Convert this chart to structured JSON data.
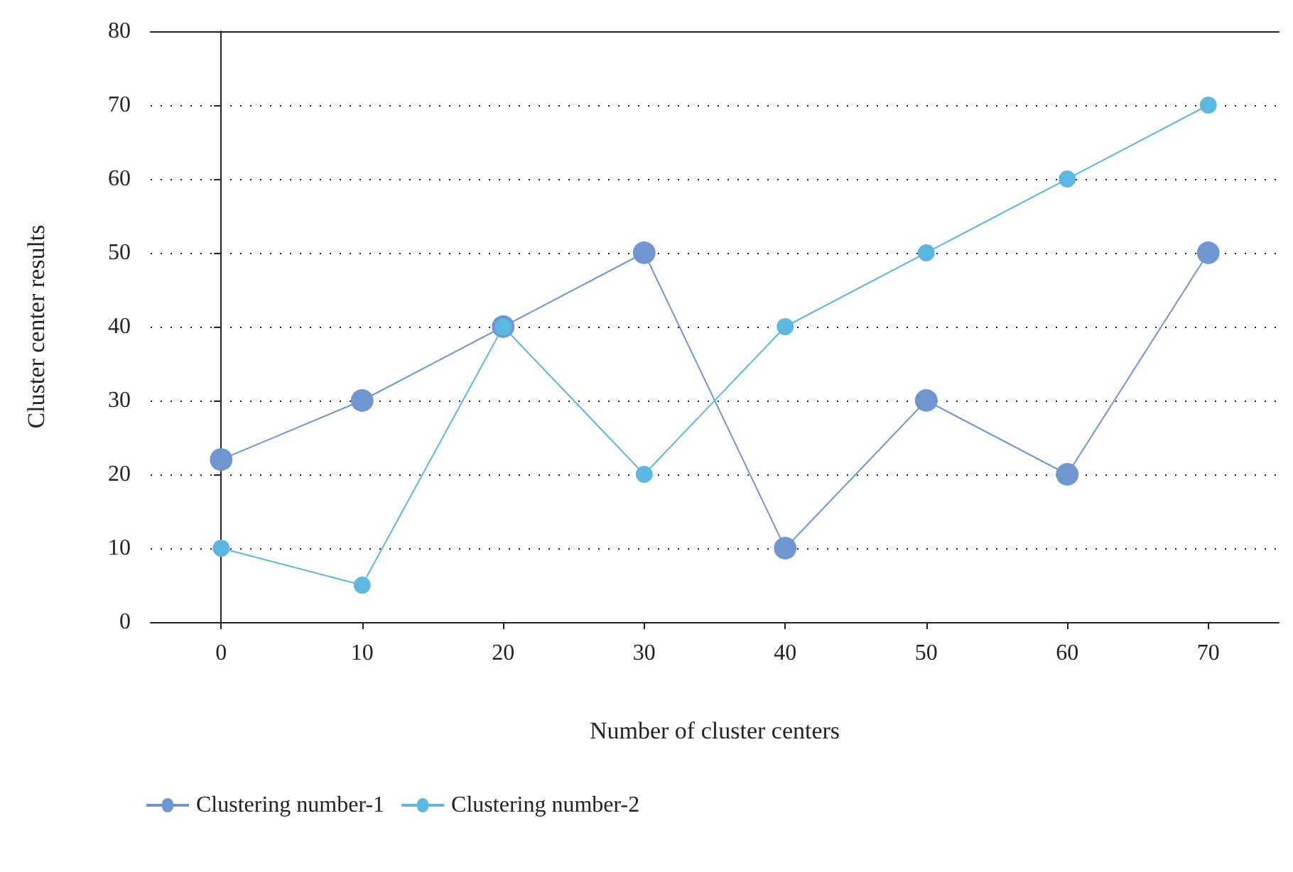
{
  "chart_data": {
    "type": "line",
    "xlabel": "Number of cluster centers",
    "ylabel": "Cluster center results",
    "x": [
      0,
      10,
      20,
      30,
      40,
      50,
      60,
      70
    ],
    "series": [
      {
        "name": "Clustering number-1",
        "color": "#7096d1",
        "values": [
          22,
          30,
          40,
          50,
          10,
          30,
          20,
          50
        ]
      },
      {
        "name": "Clustering number-2",
        "color": "#5cb8e0",
        "values": [
          10,
          5,
          40,
          20,
          40,
          50,
          60,
          70
        ]
      }
    ],
    "xlim": [
      -5,
      75
    ],
    "xticks": [
      0,
      10,
      20,
      30,
      40,
      50,
      60,
      70
    ],
    "ylim": [
      0,
      80
    ],
    "yticks": [
      0,
      10,
      20,
      30,
      40,
      50,
      60,
      70,
      80
    ],
    "grid": "y",
    "legend": "bottom left",
    "marker": "circle",
    "line_style": "solid"
  }
}
